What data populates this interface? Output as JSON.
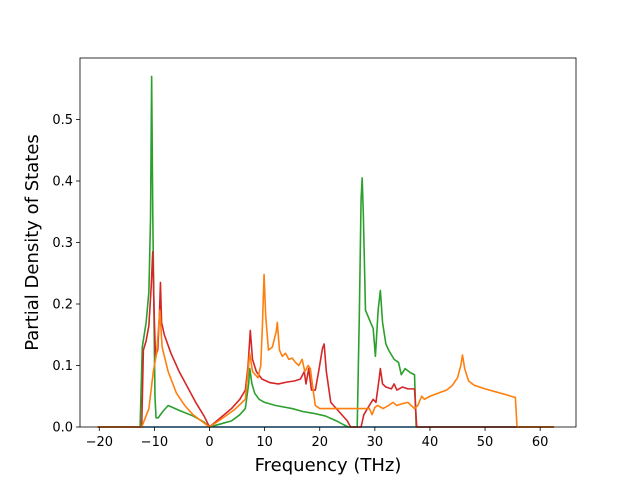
{
  "chart_data": {
    "type": "line",
    "title": "",
    "xlabel": "Frequency (THz)",
    "ylabel": "Partial Density of States",
    "xlim": [
      -23.5,
      66.5
    ],
    "ylim": [
      0.0,
      0.6
    ],
    "xticks": [
      -20,
      -10,
      0,
      10,
      20,
      30,
      40,
      50,
      60
    ],
    "xtick_labels": [
      "−20",
      "−10",
      "0",
      "10",
      "20",
      "30",
      "40",
      "50",
      "60"
    ],
    "yticks": [
      0.0,
      0.1,
      0.2,
      0.3,
      0.4,
      0.5
    ],
    "ytick_labels": [
      "0.0",
      "0.1",
      "0.2",
      "0.3",
      "0.4",
      "0.5"
    ],
    "grid": false,
    "legend": "none",
    "series": [
      {
        "color": "#1f77b4",
        "points": [
          [
            -20.3,
            0.0
          ],
          [
            62.5,
            0.0
          ]
        ]
      },
      {
        "color": "#2ca02c",
        "points": [
          [
            -20.3,
            0.0
          ],
          [
            -12.6,
            0.0
          ],
          [
            -12.2,
            0.13
          ],
          [
            -11.5,
            0.17
          ],
          [
            -11.0,
            0.22
          ],
          [
            -10.7,
            0.34
          ],
          [
            -10.5,
            0.57
          ],
          [
            -10.3,
            0.35
          ],
          [
            -10.1,
            0.2
          ],
          [
            -9.9,
            0.05
          ],
          [
            -9.7,
            0.015
          ],
          [
            -9.3,
            0.015
          ],
          [
            -8.5,
            0.025
          ],
          [
            -7.5,
            0.035
          ],
          [
            -5.5,
            0.027
          ],
          [
            -3.0,
            0.018
          ],
          [
            -1.0,
            0.008
          ],
          [
            0.0,
            0.0
          ],
          [
            2.0,
            0.005
          ],
          [
            4.0,
            0.01
          ],
          [
            5.5,
            0.02
          ],
          [
            6.5,
            0.03
          ],
          [
            7.1,
            0.07
          ],
          [
            7.3,
            0.095
          ],
          [
            7.7,
            0.07
          ],
          [
            8.2,
            0.055
          ],
          [
            9.0,
            0.045
          ],
          [
            10.0,
            0.04
          ],
          [
            12.0,
            0.035
          ],
          [
            15.0,
            0.03
          ],
          [
            17.0,
            0.025
          ],
          [
            19.0,
            0.022
          ],
          [
            21.0,
            0.018
          ],
          [
            23.0,
            0.01
          ],
          [
            24.5,
            0.003
          ],
          [
            25.2,
            0.0
          ],
          [
            26.8,
            0.0
          ],
          [
            27.2,
            0.19
          ],
          [
            27.5,
            0.37
          ],
          [
            27.7,
            0.405
          ],
          [
            27.9,
            0.35
          ],
          [
            28.3,
            0.19
          ],
          [
            29.0,
            0.175
          ],
          [
            29.7,
            0.16
          ],
          [
            30.1,
            0.115
          ],
          [
            30.6,
            0.19
          ],
          [
            31.0,
            0.222
          ],
          [
            31.4,
            0.17
          ],
          [
            32.0,
            0.135
          ],
          [
            32.5,
            0.125
          ],
          [
            33.5,
            0.11
          ],
          [
            34.3,
            0.105
          ],
          [
            34.8,
            0.085
          ],
          [
            35.5,
            0.095
          ],
          [
            36.5,
            0.088
          ],
          [
            37.2,
            0.085
          ],
          [
            37.5,
            0.0
          ],
          [
            62.5,
            0.0
          ]
        ]
      },
      {
        "color": "#d62728",
        "points": [
          [
            -20.3,
            0.0
          ],
          [
            -12.3,
            0.0
          ],
          [
            -12.0,
            0.125
          ],
          [
            -11.5,
            0.14
          ],
          [
            -11.0,
            0.165
          ],
          [
            -10.6,
            0.225
          ],
          [
            -10.3,
            0.285
          ],
          [
            -10.0,
            0.17
          ],
          [
            -9.8,
            0.115
          ],
          [
            -9.4,
            0.125
          ],
          [
            -9.1,
            0.18
          ],
          [
            -8.9,
            0.235
          ],
          [
            -8.7,
            0.17
          ],
          [
            -8.2,
            0.15
          ],
          [
            -7.0,
            0.12
          ],
          [
            -5.5,
            0.09
          ],
          [
            -4.0,
            0.065
          ],
          [
            -2.5,
            0.04
          ],
          [
            -1.0,
            0.018
          ],
          [
            0.0,
            0.0
          ],
          [
            2.0,
            0.015
          ],
          [
            4.0,
            0.03
          ],
          [
            5.5,
            0.045
          ],
          [
            6.5,
            0.06
          ],
          [
            7.0,
            0.1
          ],
          [
            7.4,
            0.157
          ],
          [
            7.8,
            0.11
          ],
          [
            8.5,
            0.09
          ],
          [
            9.5,
            0.078
          ],
          [
            11.0,
            0.072
          ],
          [
            12.5,
            0.07
          ],
          [
            14.0,
            0.073
          ],
          [
            15.5,
            0.075
          ],
          [
            16.5,
            0.078
          ],
          [
            17.2,
            0.09
          ],
          [
            17.5,
            0.07
          ],
          [
            18.0,
            0.095
          ],
          [
            18.5,
            0.06
          ],
          [
            19.2,
            0.06
          ],
          [
            19.8,
            0.09
          ],
          [
            20.5,
            0.128
          ],
          [
            20.8,
            0.135
          ],
          [
            21.2,
            0.09
          ],
          [
            22.0,
            0.04
          ],
          [
            23.5,
            0.025
          ],
          [
            25.0,
            0.01
          ],
          [
            25.6,
            0.0
          ],
          [
            27.5,
            0.0
          ],
          [
            28.0,
            0.02
          ],
          [
            29.0,
            0.035
          ],
          [
            29.7,
            0.045
          ],
          [
            30.2,
            0.04
          ],
          [
            30.8,
            0.08
          ],
          [
            31.0,
            0.095
          ],
          [
            31.4,
            0.07
          ],
          [
            32.0,
            0.065
          ],
          [
            33.0,
            0.062
          ],
          [
            33.5,
            0.07
          ],
          [
            34.0,
            0.06
          ],
          [
            35.0,
            0.065
          ],
          [
            36.0,
            0.062
          ],
          [
            37.2,
            0.062
          ],
          [
            37.6,
            0.0
          ],
          [
            62.5,
            0.0
          ]
        ]
      },
      {
        "color": "#ff7f0e",
        "points": [
          [
            -20.3,
            0.0
          ],
          [
            -12.3,
            0.0
          ],
          [
            -11.0,
            0.03
          ],
          [
            -10.2,
            0.09
          ],
          [
            -9.6,
            0.12
          ],
          [
            -9.0,
            0.19
          ],
          [
            -8.6,
            0.13
          ],
          [
            -7.5,
            0.09
          ],
          [
            -6.0,
            0.055
          ],
          [
            -4.5,
            0.035
          ],
          [
            -3.0,
            0.02
          ],
          [
            -1.5,
            0.01
          ],
          [
            0.0,
            0.0
          ],
          [
            2.0,
            0.012
          ],
          [
            4.5,
            0.028
          ],
          [
            6.5,
            0.045
          ],
          [
            7.3,
            0.12
          ],
          [
            7.8,
            0.09
          ],
          [
            8.8,
            0.08
          ],
          [
            9.3,
            0.1
          ],
          [
            9.6,
            0.165
          ],
          [
            9.9,
            0.248
          ],
          [
            10.2,
            0.18
          ],
          [
            10.7,
            0.125
          ],
          [
            11.4,
            0.13
          ],
          [
            12.1,
            0.155
          ],
          [
            12.3,
            0.17
          ],
          [
            12.7,
            0.125
          ],
          [
            13.2,
            0.115
          ],
          [
            13.8,
            0.12
          ],
          [
            14.4,
            0.11
          ],
          [
            15.0,
            0.112
          ],
          [
            15.6,
            0.105
          ],
          [
            16.2,
            0.1
          ],
          [
            16.8,
            0.11
          ],
          [
            17.3,
            0.09
          ],
          [
            17.9,
            0.1
          ],
          [
            18.3,
            0.095
          ],
          [
            18.8,
            0.06
          ],
          [
            19.2,
            0.035
          ],
          [
            20.0,
            0.03
          ],
          [
            25.0,
            0.03
          ],
          [
            29.0,
            0.03
          ],
          [
            29.5,
            0.02
          ],
          [
            30.0,
            0.032
          ],
          [
            30.5,
            0.035
          ],
          [
            31.5,
            0.03
          ],
          [
            32.5,
            0.035
          ],
          [
            33.3,
            0.04
          ],
          [
            34.0,
            0.035
          ],
          [
            35.0,
            0.038
          ],
          [
            36.0,
            0.04
          ],
          [
            36.6,
            0.035
          ],
          [
            37.2,
            0.03
          ],
          [
            37.8,
            0.035
          ],
          [
            38.5,
            0.05
          ],
          [
            39.0,
            0.045
          ],
          [
            40.0,
            0.05
          ],
          [
            41.5,
            0.055
          ],
          [
            43.0,
            0.06
          ],
          [
            44.0,
            0.067
          ],
          [
            45.0,
            0.08
          ],
          [
            45.6,
            0.1
          ],
          [
            45.9,
            0.117
          ],
          [
            46.3,
            0.095
          ],
          [
            47.0,
            0.075
          ],
          [
            48.0,
            0.068
          ],
          [
            50.0,
            0.062
          ],
          [
            52.0,
            0.057
          ],
          [
            54.0,
            0.052
          ],
          [
            55.5,
            0.048
          ],
          [
            55.8,
            0.0
          ],
          [
            62.5,
            0.0
          ]
        ]
      }
    ]
  }
}
